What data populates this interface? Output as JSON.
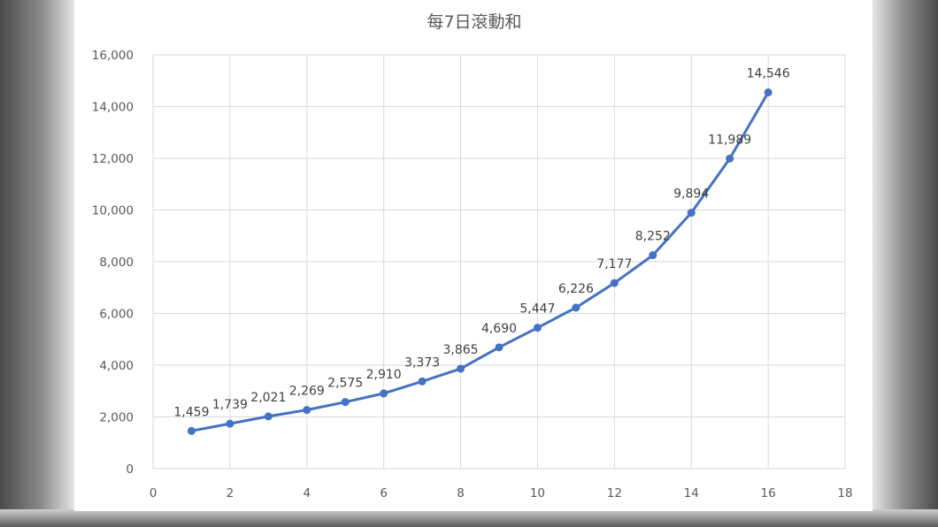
{
  "chart_data": {
    "type": "scatter",
    "title": "每7日滾動和",
    "xlabel": "",
    "ylabel": "",
    "xlim": [
      0,
      18
    ],
    "ylim": [
      0,
      16000
    ],
    "x_ticks": [
      0,
      2,
      4,
      6,
      8,
      10,
      12,
      14,
      16,
      18
    ],
    "x_tick_labels": [
      "0",
      "2",
      "4",
      "6",
      "8",
      "10",
      "12",
      "14",
      "16",
      "18"
    ],
    "y_ticks": [
      0,
      2000,
      4000,
      6000,
      8000,
      10000,
      12000,
      14000,
      16000
    ],
    "y_tick_labels": [
      "0",
      "2,000",
      "4,000",
      "6,000",
      "8,000",
      "10,000",
      "12,000",
      "14,000",
      "16,000"
    ],
    "grid": true,
    "lines_connected": true,
    "markers": true,
    "color": "#4472C4",
    "series": [
      {
        "x": [
          1,
          2,
          3,
          4,
          5,
          6,
          7,
          8,
          9,
          10,
          11,
          12,
          13,
          14,
          15,
          16
        ],
        "y": [
          1459,
          1739,
          2021,
          2269,
          2575,
          2910,
          3373,
          3865,
          4690,
          5447,
          6226,
          7177,
          8252,
          9894,
          11989,
          14546
        ],
        "labels": [
          "1,459",
          "1,739",
          "2,021",
          "2,269",
          "2,575",
          "2,910",
          "3,373",
          "3,865",
          "4,690",
          "5,447",
          "6,226",
          "7,177",
          "8,252",
          "9,894",
          "11,989",
          "14,546"
        ]
      }
    ]
  }
}
